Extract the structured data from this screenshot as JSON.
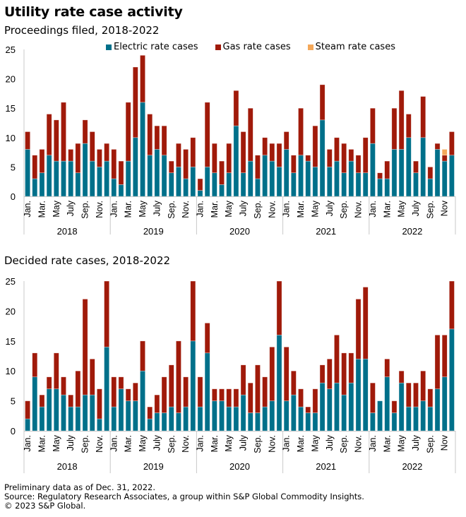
{
  "header": {
    "title": "Utility rate case activity",
    "subtitle_filed": "Proceedings filed, 2018-2022",
    "subtitle_decided": "Decided rate cases, 2018-2022"
  },
  "legend": [
    {
      "name": "Electric rate cases",
      "color": "#00708A"
    },
    {
      "name": "Gas rate cases",
      "color": "#A01A0A"
    },
    {
      "name": "Steam rate cases",
      "color": "#F4A85A"
    }
  ],
  "footer": {
    "note": "Preliminary data as of Dec. 31, 2022.",
    "source": "Source: Regulatory Research Associates, a group within S&P Global Commodity Insights.",
    "copyright": "© 2023 S&P Global."
  },
  "chart_data": [
    {
      "type": "bar",
      "stacked": true,
      "title": "Proceedings filed, 2018-2022",
      "xlabel": "",
      "ylabel": "",
      "ylim": [
        0,
        25
      ],
      "yticks": [
        0,
        5,
        10,
        15,
        20,
        25
      ],
      "grid": false,
      "legend_position": "top",
      "years": [
        "2018",
        "2019",
        "2020",
        "2021",
        "2022"
      ],
      "month_labels": [
        [
          "Jan.",
          "Mar.",
          "May",
          "July",
          "Sep.",
          "Nov."
        ],
        [
          "Jan.",
          "Mar.",
          "May",
          "July",
          "Sep.",
          "Nov."
        ],
        [
          "Jan.",
          "Mar.",
          "May",
          "July",
          "Sep.",
          "Nov."
        ],
        [
          "Jan.",
          "Mar.",
          "May",
          "July",
          "Sep.",
          "Nov."
        ],
        [
          "Jan.",
          "Mar.",
          "May",
          "July",
          "Sep.",
          "Nov"
        ]
      ],
      "series": [
        {
          "name": "Electric rate cases",
          "values": [
            8,
            3,
            4,
            7,
            6,
            6,
            6,
            4,
            9,
            6,
            5,
            6,
            3,
            2,
            6,
            10,
            16,
            7,
            8,
            7,
            4,
            5,
            3,
            5,
            1,
            5,
            4,
            2,
            4,
            12,
            4,
            6,
            3,
            7,
            6,
            5,
            8,
            4,
            7,
            6,
            5,
            13,
            5,
            6,
            4,
            6,
            4,
            4,
            9,
            3,
            3,
            8,
            8,
            10,
            4,
            10,
            3,
            8,
            6,
            7
          ]
        },
        {
          "name": "Gas rate cases",
          "values": [
            3,
            4,
            4,
            7,
            7,
            10,
            2,
            5,
            4,
            5,
            3,
            3,
            5,
            4,
            10,
            12,
            8,
            7,
            4,
            5,
            2,
            4,
            5,
            5,
            2,
            11,
            5,
            4,
            5,
            6,
            7,
            9,
            4,
            3,
            3,
            4,
            3,
            3,
            8,
            1,
            7,
            6,
            3,
            4,
            5,
            2,
            3,
            6,
            6,
            1,
            3,
            7,
            10,
            4,
            2,
            7,
            2,
            1,
            1,
            4
          ]
        },
        {
          "name": "Steam rate cases",
          "values": [
            0,
            0,
            0,
            0,
            0,
            0,
            0,
            0,
            0,
            0,
            0,
            0,
            0,
            0,
            0,
            0,
            0,
            0,
            0,
            0,
            0,
            0,
            0,
            0,
            0,
            0,
            0,
            0,
            0,
            0,
            0,
            0,
            0,
            0,
            0,
            0,
            0,
            0,
            0,
            0,
            0,
            0,
            0,
            0,
            0,
            0,
            0,
            0,
            0,
            0,
            0,
            0,
            0,
            0,
            0,
            0,
            0,
            0,
            1,
            0
          ]
        }
      ]
    },
    {
      "type": "bar",
      "stacked": true,
      "title": "Decided rate cases, 2018-2022",
      "xlabel": "",
      "ylabel": "",
      "ylim": [
        0,
        25
      ],
      "yticks": [
        0,
        5,
        10,
        15,
        20,
        25
      ],
      "grid": false,
      "years": [
        "2018",
        "2019",
        "2020",
        "2021",
        "2022"
      ],
      "month_labels": [
        [
          "Jan.",
          "Mar.",
          "May",
          "July",
          "Sep.",
          "Nov."
        ],
        [
          "Jan.",
          "Mar.",
          "May",
          "July",
          "Sep.",
          "Nov."
        ],
        [
          "Jan.",
          "Mar.",
          "May",
          "July",
          "Sep.",
          "Nov."
        ],
        [
          "Jan.",
          "Mar.",
          "May",
          "July",
          "Sep.",
          "Nov."
        ],
        [
          "Jan.",
          "Mar.",
          "May",
          "July",
          "Sep.",
          "Nov"
        ]
      ],
      "series": [
        {
          "name": "Electric rate cases",
          "values": [
            2,
            9,
            4,
            7,
            7,
            6,
            4,
            4,
            6,
            6,
            2,
            14,
            4,
            7,
            5,
            5,
            10,
            2,
            3,
            3,
            4,
            3,
            4,
            15,
            4,
            13,
            5,
            5,
            4,
            4,
            6,
            3,
            3,
            4,
            5,
            16,
            5,
            6,
            4,
            3,
            3,
            8,
            7,
            8,
            6,
            8,
            12,
            12,
            3,
            5,
            9,
            3,
            8,
            4,
            4,
            5,
            4,
            7,
            9,
            17
          ]
        },
        {
          "name": "Gas rate cases",
          "values": [
            3,
            4,
            2,
            2,
            6,
            3,
            2,
            6,
            16,
            6,
            5,
            11,
            5,
            2,
            2,
            3,
            5,
            2,
            3,
            6,
            7,
            12,
            5,
            10,
            5,
            5,
            2,
            2,
            3,
            3,
            5,
            5,
            8,
            5,
            9,
            9,
            9,
            4,
            3,
            1,
            4,
            3,
            5,
            8,
            7,
            5,
            10,
            12,
            5,
            0,
            3,
            2,
            2,
            4,
            4,
            5,
            3,
            9,
            7,
            8
          ]
        },
        {
          "name": "Steam rate cases",
          "values": [
            0,
            0,
            0,
            0,
            0,
            0,
            0,
            0,
            0,
            0,
            0,
            0,
            0,
            0,
            0,
            0,
            0,
            0,
            0,
            0,
            0,
            0,
            0,
            0,
            0,
            0,
            0,
            0,
            0,
            0,
            0,
            0,
            0,
            0,
            0,
            0,
            0,
            0,
            0,
            0,
            0,
            0,
            0,
            0,
            0,
            0,
            0,
            0,
            0,
            0,
            0,
            0,
            0,
            0,
            0,
            0,
            0,
            0,
            0,
            0
          ]
        }
      ]
    }
  ]
}
